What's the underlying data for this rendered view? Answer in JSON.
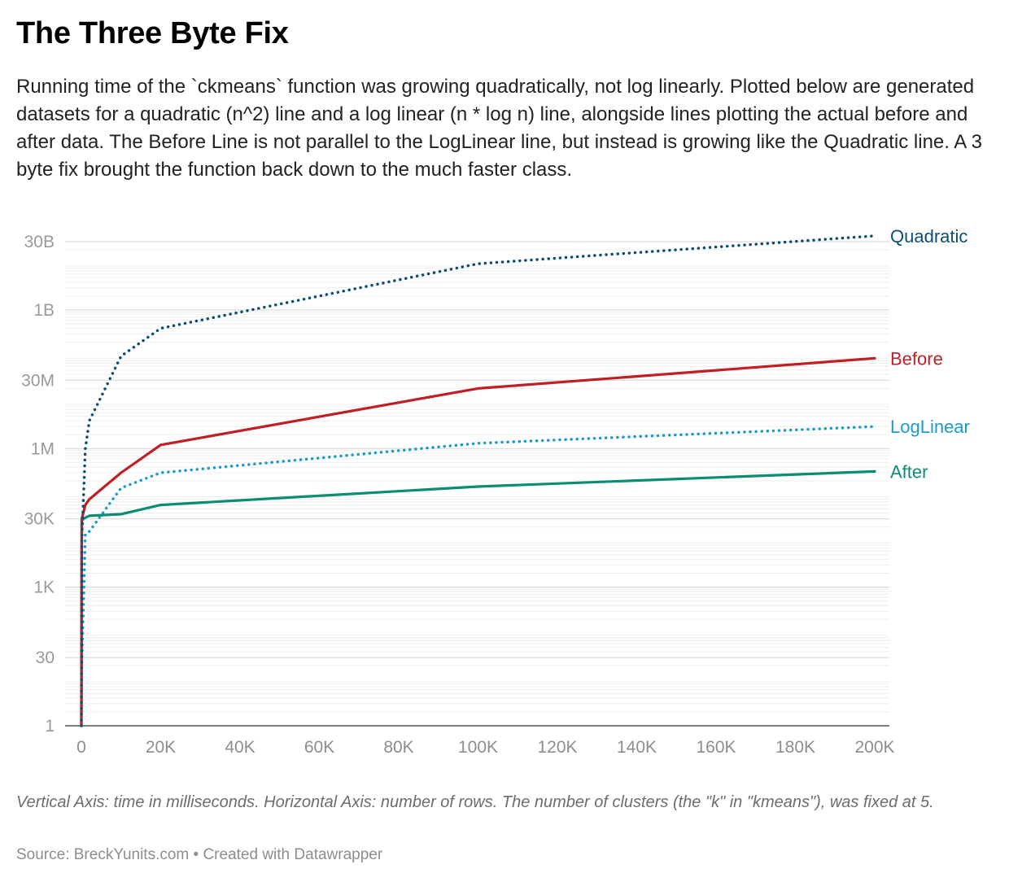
{
  "header": {
    "title": "The Three Byte Fix",
    "description": "Running time of the `ckmeans` function was growing quadratically, not log linearly. Plotted below are generated datasets for a quadratic (n^2) line and a log linear (n * log n) line, alongside lines plotting the actual before and after data. The Before Line is not parallel to the LogLinear line, but instead is growing like the Quadratic line. A 3 byte fix brought the function back down to the much faster class."
  },
  "footer": {
    "notes": "Vertical Axis: time in milliseconds. Horizontal Axis: number of rows. The number of clusters (the \"k\" in \"kmeans\"), was fixed at 5.",
    "source": "Source: BreckYunits.com • Created with Datawrapper"
  },
  "chart_data": {
    "type": "line",
    "title": "The Three Byte Fix",
    "xlabel": "number of rows",
    "ylabel": "time in milliseconds",
    "yscale": "log",
    "xlim": [
      0,
      200000
    ],
    "ylim": [
      1,
      30000000000
    ],
    "grid": true,
    "legend": "inline-right",
    "x_ticks": [
      {
        "value": 0,
        "label": "0"
      },
      {
        "value": 20000,
        "label": "20K"
      },
      {
        "value": 40000,
        "label": "40K"
      },
      {
        "value": 60000,
        "label": "60K"
      },
      {
        "value": 80000,
        "label": "80K"
      },
      {
        "value": 100000,
        "label": "100K"
      },
      {
        "value": 120000,
        "label": "120K"
      },
      {
        "value": 140000,
        "label": "140K"
      },
      {
        "value": 160000,
        "label": "160K"
      },
      {
        "value": 180000,
        "label": "180K"
      },
      {
        "value": 200000,
        "label": "200K"
      }
    ],
    "y_ticks": [
      {
        "value": 1,
        "label": "1"
      },
      {
        "value": 30,
        "label": "30"
      },
      {
        "value": 1000,
        "label": "1K"
      },
      {
        "value": 30000,
        "label": "30K"
      },
      {
        "value": 1000000,
        "label": "1M"
      },
      {
        "value": 30000000,
        "label": "30M"
      },
      {
        "value": 1000000000,
        "label": "1B"
      },
      {
        "value": 30000000000,
        "label": "30B"
      }
    ],
    "series": [
      {
        "name": "Quadratic",
        "color": "#0d4f73",
        "style": "dotted",
        "points": [
          [
            0,
            1
          ],
          [
            100,
            10000
          ],
          [
            1000,
            1000000
          ],
          [
            2000,
            4000000
          ],
          [
            10000,
            100000000
          ],
          [
            20000,
            400000000
          ],
          [
            100000,
            10000000000
          ],
          [
            200000,
            40000000000
          ]
        ]
      },
      {
        "name": "Before",
        "color": "#c01f24",
        "style": "solid",
        "points": [
          [
            0,
            1
          ],
          [
            100,
            30000
          ],
          [
            1000,
            60000
          ],
          [
            2000,
            80000
          ],
          [
            10000,
            300000
          ],
          [
            20000,
            1200000
          ],
          [
            100000,
            20000000
          ],
          [
            200000,
            90000000
          ]
        ]
      },
      {
        "name": "LogLinear",
        "color": "#1d9bca",
        "style": "dotted",
        "points": [
          [
            0,
            1
          ],
          [
            100,
            20
          ],
          [
            1000,
            14000
          ],
          [
            2000,
            16000
          ],
          [
            10000,
            140000
          ],
          [
            20000,
            300000
          ],
          [
            100000,
            1300000
          ],
          [
            200000,
            3000000
          ]
        ]
      },
      {
        "name": "After",
        "color": "#0b8d73",
        "style": "solid",
        "points": [
          [
            0,
            1
          ],
          [
            100,
            28000
          ],
          [
            1000,
            32000
          ],
          [
            2000,
            35000
          ],
          [
            10000,
            38000
          ],
          [
            20000,
            60000
          ],
          [
            100000,
            150000
          ],
          [
            200000,
            320000
          ]
        ]
      }
    ]
  }
}
